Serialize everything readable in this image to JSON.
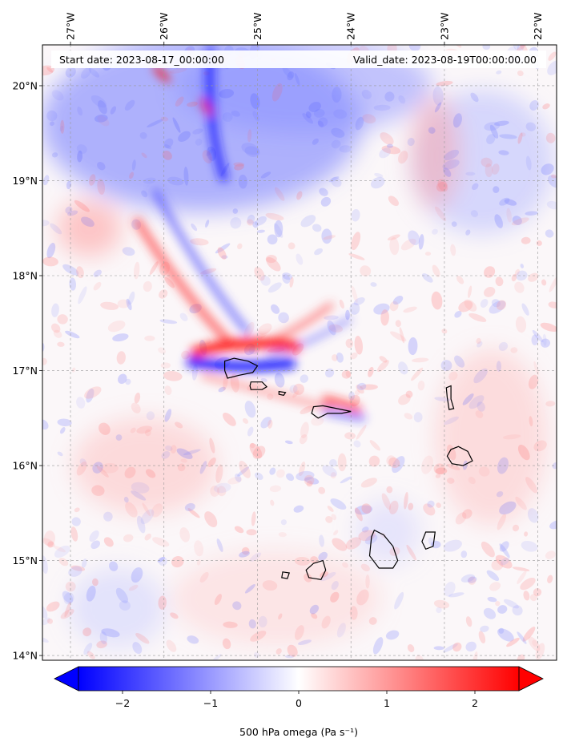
{
  "map": {
    "start_label": "Start date: 2023-08-17_00:00:00",
    "valid_label": "Valid_date: 2023-08-19T00:00:00.00",
    "lon_ticks": [
      "27°W",
      "26°W",
      "25°W",
      "24°W",
      "23°W",
      "22°W"
    ],
    "lat_ticks": [
      "20°N",
      "19°N",
      "18°N",
      "17°N",
      "16°N",
      "15°N",
      "14°N"
    ],
    "lon_values": [
      -27,
      -26,
      -25,
      -24,
      -23,
      -22
    ],
    "lat_values": [
      20,
      19,
      18,
      17,
      16,
      15,
      14
    ],
    "extent": {
      "lon_min": -27.3,
      "lon_max": -21.8,
      "lat_min": 13.95,
      "lat_max": 20.43
    },
    "gridlines": true,
    "coastline_color": "#000000"
  },
  "colorbar": {
    "label": "500 hPa omega (Pa s⁻¹)",
    "ticks": [
      "−2",
      "−1",
      "0",
      "1",
      "2"
    ],
    "tick_values": [
      -2,
      -1,
      0,
      1,
      2
    ],
    "range": [
      -2.5,
      2.5
    ],
    "extend": "both",
    "colormap": "bwr",
    "low_color": "#0000ff",
    "mid_color": "#ffffff",
    "high_color": "#ff0000"
  },
  "features": [
    {
      "name": "descent-band-north",
      "lon": -25.3,
      "lat": 17.25,
      "value": 2.5
    },
    {
      "name": "ascent-band-south",
      "lon": -25.2,
      "lat": 17.1,
      "value": -2.5
    },
    {
      "name": "ascent-region-nw",
      "lon": -25.8,
      "lat": 19.6,
      "value": -1.5
    },
    {
      "name": "descent-small-east",
      "lon": -24.1,
      "lat": 16.65,
      "value": 2.0
    }
  ]
}
